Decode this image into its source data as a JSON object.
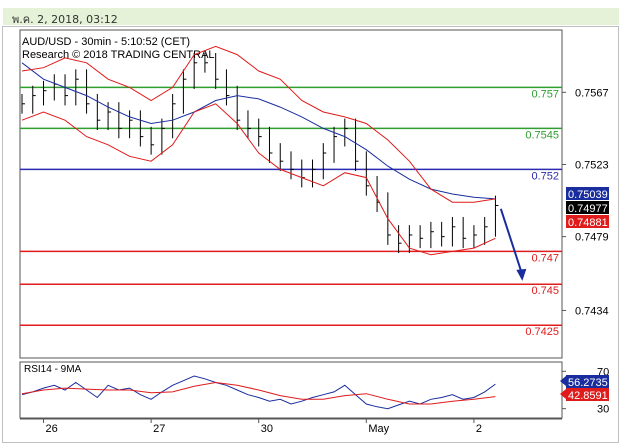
{
  "header": {
    "timestamp": "พ.ค. 2, 2018, 03:12"
  },
  "chart_data": {
    "type": "line",
    "title": "AUD/USD - 30min - 5:10:52 (CET)",
    "subtitle": "Research © 2018 TRADING CENTRAL",
    "price_panel": {
      "ylim": [
        0.7405,
        0.7605
      ],
      "y_ticks": [
        {
          "value": 0.7567,
          "label": "0.7567"
        },
        {
          "value": 0.7523,
          "label": "0.7523"
        },
        {
          "value": 0.7479,
          "label": "0.7479"
        },
        {
          "value": 0.7434,
          "label": "0.7434"
        }
      ],
      "x_range": [
        0,
        100
      ],
      "x_ticks": [
        {
          "x": 4,
          "label": "26"
        },
        {
          "x": 24,
          "label": "27"
        },
        {
          "x": 44,
          "label": "30"
        },
        {
          "x": 64,
          "label": "May"
        },
        {
          "x": 84,
          "label": "2"
        }
      ],
      "levels": [
        {
          "value": 0.757,
          "label": "0.757",
          "color": "#2e9e2e"
        },
        {
          "value": 0.7545,
          "label": "0.7545",
          "color": "#2e9e2e"
        },
        {
          "value": 0.752,
          "label": "0.752",
          "color": "#2b2bb0"
        },
        {
          "value": 0.747,
          "label": "0.747",
          "color": "#e01b1b"
        },
        {
          "value": 0.745,
          "label": "0.745",
          "color": "#e01b1b"
        },
        {
          "value": 0.7425,
          "label": "0.7425",
          "color": "#e01b1b"
        }
      ],
      "price_badges": [
        {
          "value": 0.75039,
          "label": "0.75039",
          "color": "#1a2d9e"
        },
        {
          "value": 0.74977,
          "label": "0.74977",
          "color": "#000000"
        },
        {
          "value": 0.74881,
          "label": "0.74881",
          "color": "#e01b1b"
        }
      ],
      "forecast_arrow": {
        "from": [
          89,
          0.7496
        ],
        "to": [
          93,
          0.7452
        ],
        "color": "#1a2d9e"
      },
      "series": [
        {
          "style": "bars",
          "color": "#000000",
          "x": [
            0,
            2,
            4,
            6,
            8,
            10,
            12,
            14,
            16,
            18,
            20,
            22,
            24,
            26,
            28,
            30,
            32,
            34,
            36,
            38,
            40,
            42,
            44,
            46,
            48,
            50,
            52,
            54,
            56,
            58,
            60,
            62,
            64,
            66,
            68,
            70,
            72,
            74,
            76,
            78,
            80,
            82,
            84,
            86,
            88
          ],
          "close": [
            0.756,
            0.7565,
            0.7568,
            0.7572,
            0.7565,
            0.7575,
            0.756,
            0.755,
            0.7555,
            0.7545,
            0.755,
            0.754,
            0.7535,
            0.7545,
            0.756,
            0.7575,
            0.7585,
            0.7585,
            0.7575,
            0.7565,
            0.755,
            0.7545,
            0.754,
            0.753,
            0.7525,
            0.752,
            0.7515,
            0.752,
            0.753,
            0.754,
            0.7545,
            0.7525,
            0.751,
            0.75,
            0.748,
            0.7475,
            0.748,
            0.7478,
            0.7482,
            0.7479,
            0.7485,
            0.7478,
            0.748,
            0.7485,
            0.7498
          ]
        },
        {
          "name": "Moving Average",
          "style": "line",
          "color": "#1a2d9e",
          "x": [
            0,
            4,
            8,
            12,
            16,
            20,
            24,
            28,
            32,
            36,
            40,
            44,
            48,
            52,
            56,
            60,
            64,
            68,
            72,
            76,
            80,
            84,
            88
          ],
          "y": [
            0.7585,
            0.7575,
            0.757,
            0.7565,
            0.7558,
            0.7552,
            0.7548,
            0.755,
            0.7555,
            0.7562,
            0.7565,
            0.7563,
            0.7558,
            0.7552,
            0.7545,
            0.754,
            0.7532,
            0.7522,
            0.7514,
            0.7508,
            0.7505,
            0.7503,
            0.7502
          ]
        },
        {
          "name": "Upper Band",
          "style": "line",
          "color": "#e01b1b",
          "x": [
            0,
            4,
            8,
            12,
            16,
            20,
            24,
            28,
            32,
            36,
            40,
            44,
            48,
            52,
            56,
            60,
            64,
            68,
            72,
            76,
            80,
            84,
            88
          ],
          "y": [
            0.758,
            0.7582,
            0.7588,
            0.7585,
            0.7575,
            0.757,
            0.7562,
            0.757,
            0.759,
            0.7595,
            0.759,
            0.758,
            0.7575,
            0.7562,
            0.7555,
            0.7552,
            0.7548,
            0.7538,
            0.7525,
            0.7508,
            0.75,
            0.75,
            0.7502
          ]
        },
        {
          "name": "Lower Band",
          "style": "line",
          "color": "#e01b1b",
          "x": [
            0,
            4,
            8,
            12,
            16,
            20,
            24,
            28,
            32,
            36,
            40,
            44,
            48,
            52,
            56,
            60,
            64,
            68,
            72,
            76,
            80,
            84,
            88
          ],
          "y": [
            0.755,
            0.7555,
            0.755,
            0.754,
            0.7535,
            0.7528,
            0.7525,
            0.7535,
            0.7555,
            0.756,
            0.7548,
            0.753,
            0.752,
            0.7515,
            0.751,
            0.7518,
            0.7515,
            0.749,
            0.7472,
            0.7468,
            0.747,
            0.7472,
            0.7478
          ]
        }
      ]
    },
    "rsi_panel": {
      "label": "RSI14 - 9MA",
      "ylim": [
        20,
        80
      ],
      "y_ticks": [
        {
          "value": 70,
          "label": "70"
        },
        {
          "value": 30,
          "label": "30"
        }
      ],
      "badges": [
        {
          "value": 56.2735,
          "label": "56.2735",
          "color": "#1a2d9e"
        },
        {
          "value": 42.8591,
          "label": "42.8591",
          "color": "#e01b1b"
        }
      ],
      "series": [
        {
          "name": "RSI",
          "color": "#1a2d9e",
          "x": [
            0,
            2,
            4,
            6,
            8,
            10,
            12,
            14,
            16,
            18,
            20,
            22,
            24,
            26,
            28,
            30,
            32,
            34,
            36,
            38,
            40,
            42,
            44,
            46,
            48,
            50,
            52,
            54,
            56,
            58,
            60,
            62,
            64,
            66,
            68,
            70,
            72,
            74,
            76,
            78,
            80,
            82,
            84,
            86,
            88
          ],
          "y": [
            45,
            48,
            52,
            55,
            50,
            58,
            50,
            42,
            55,
            50,
            52,
            45,
            40,
            48,
            55,
            60,
            65,
            62,
            58,
            55,
            50,
            45,
            42,
            38,
            40,
            35,
            38,
            42,
            45,
            48,
            55,
            45,
            35,
            32,
            30,
            34,
            38,
            35,
            40,
            42,
            45,
            40,
            42,
            48,
            56.3
          ]
        },
        {
          "name": "MA",
          "color": "#e01b1b",
          "x": [
            0,
            4,
            8,
            12,
            16,
            20,
            24,
            28,
            32,
            36,
            40,
            44,
            48,
            52,
            56,
            60,
            64,
            68,
            72,
            76,
            80,
            84,
            88
          ],
          "y": [
            46,
            50,
            52,
            51,
            50,
            50,
            47,
            48,
            54,
            58,
            55,
            50,
            44,
            40,
            40,
            44,
            46,
            40,
            35,
            35,
            38,
            40,
            42.9
          ]
        }
      ]
    }
  }
}
